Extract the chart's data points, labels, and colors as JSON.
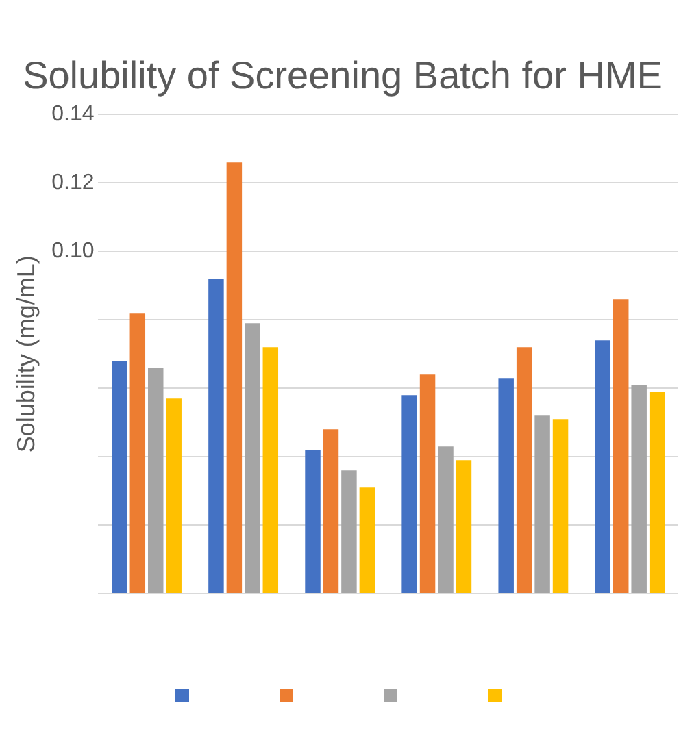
{
  "chart_data": {
    "type": "bar",
    "title": "Solubility of Screening Batch for HME",
    "ylabel": "Solubility (mg/mL)",
    "categories": [
      null,
      null,
      null,
      null,
      null,
      null
    ],
    "series": [
      {
        "color": "#4472c4",
        "values": [
          0.068,
          0.092,
          0.042,
          0.058,
          0.063,
          0.074
        ]
      },
      {
        "color": "#ed7d31",
        "values": [
          0.082,
          0.126,
          0.048,
          0.064,
          0.072,
          0.086
        ]
      },
      {
        "color": "#a5a5a5",
        "values": [
          0.066,
          0.079,
          0.036,
          0.043,
          0.052,
          0.061
        ]
      },
      {
        "color": "#ffc000",
        "values": [
          0.057,
          0.072,
          0.031,
          0.039,
          0.051,
          0.059
        ]
      }
    ],
    "ylim": [
      0,
      0.14
    ],
    "yticks": [
      {
        "value": 0,
        "label": null
      },
      {
        "value": 0.02,
        "label": null
      },
      {
        "value": 0.04,
        "label": null
      },
      {
        "value": 0.06,
        "label": null
      },
      {
        "value": 0.08,
        "label": null
      },
      {
        "value": 0.1,
        "label": "0.10"
      },
      {
        "value": 0.12,
        "label": "0.12"
      },
      {
        "value": 0.14,
        "label": "0.14"
      }
    ],
    "grid": "y"
  }
}
